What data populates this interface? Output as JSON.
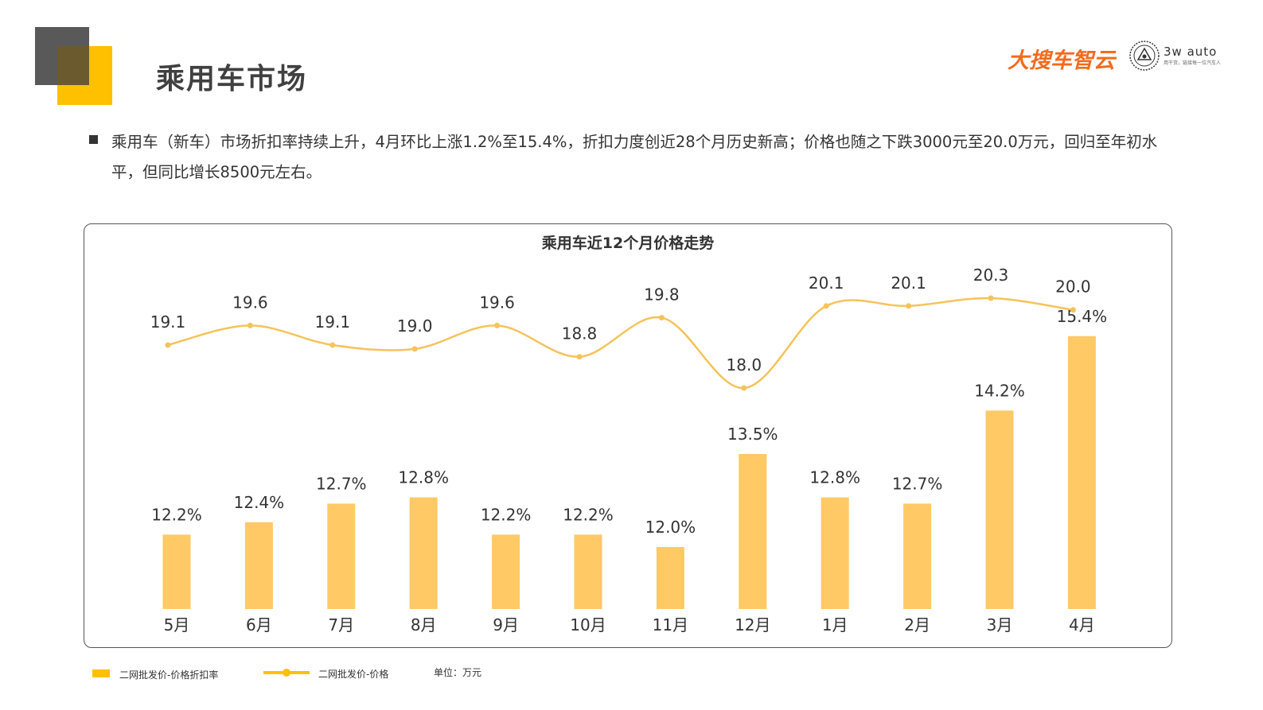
{
  "header": {
    "title": "乘用车市场",
    "brand_logo_text": "大搜车智云",
    "partner_logo_text": "3w auto",
    "partner_logo_subtext": "用干货，链接每一位汽车人"
  },
  "summary": {
    "text": "乘用车（新车）市场折扣率持续上升，4月环比上涨1.2%至15.4%，折扣力度创近28个月历史新高；价格也随之下跌3000元至20.0万元，回归至年初水平，但同比增长8500元左右。"
  },
  "legend": {
    "bar_label": "二网批发价-价格折扣率",
    "line_label": "二网批发价-价格",
    "unit": "单位：万元"
  },
  "colors": {
    "bar": "#FFC966",
    "line": "#F5C35B",
    "accent": "#FFC000",
    "frame": "#555555"
  },
  "chart_data": {
    "type": "bar",
    "title": "乘用车近12个月价格走势",
    "categories": [
      "5月",
      "6月",
      "7月",
      "8月",
      "9月",
      "10月",
      "11月",
      "12月",
      "1月",
      "2月",
      "3月",
      "4月"
    ],
    "series": [
      {
        "name": "二网批发价-价格折扣率",
        "type": "bar",
        "values": [
          12.2,
          12.4,
          12.7,
          12.8,
          12.2,
          12.2,
          12.0,
          13.5,
          12.8,
          12.7,
          14.2,
          15.4
        ],
        "labels": [
          "12.2%",
          "12.4%",
          "12.7%",
          "12.8%",
          "12.2%",
          "12.2%",
          "12.0%",
          "13.5%",
          "12.8%",
          "12.7%",
          "14.2%",
          "15.4%"
        ]
      },
      {
        "name": "二网批发价-价格",
        "type": "line",
        "values": [
          19.1,
          19.6,
          19.1,
          19.0,
          19.6,
          18.8,
          19.8,
          18.0,
          20.1,
          20.1,
          20.3,
          20.0
        ],
        "labels": [
          "19.1",
          "19.6",
          "19.1",
          "19.0",
          "19.6",
          "18.8",
          "19.8",
          "18.0",
          "20.1",
          "20.1",
          "20.3",
          "20.0"
        ]
      }
    ],
    "xlabel": "",
    "ylabel": "",
    "legend_position": "bottom-left",
    "grid": false
  }
}
